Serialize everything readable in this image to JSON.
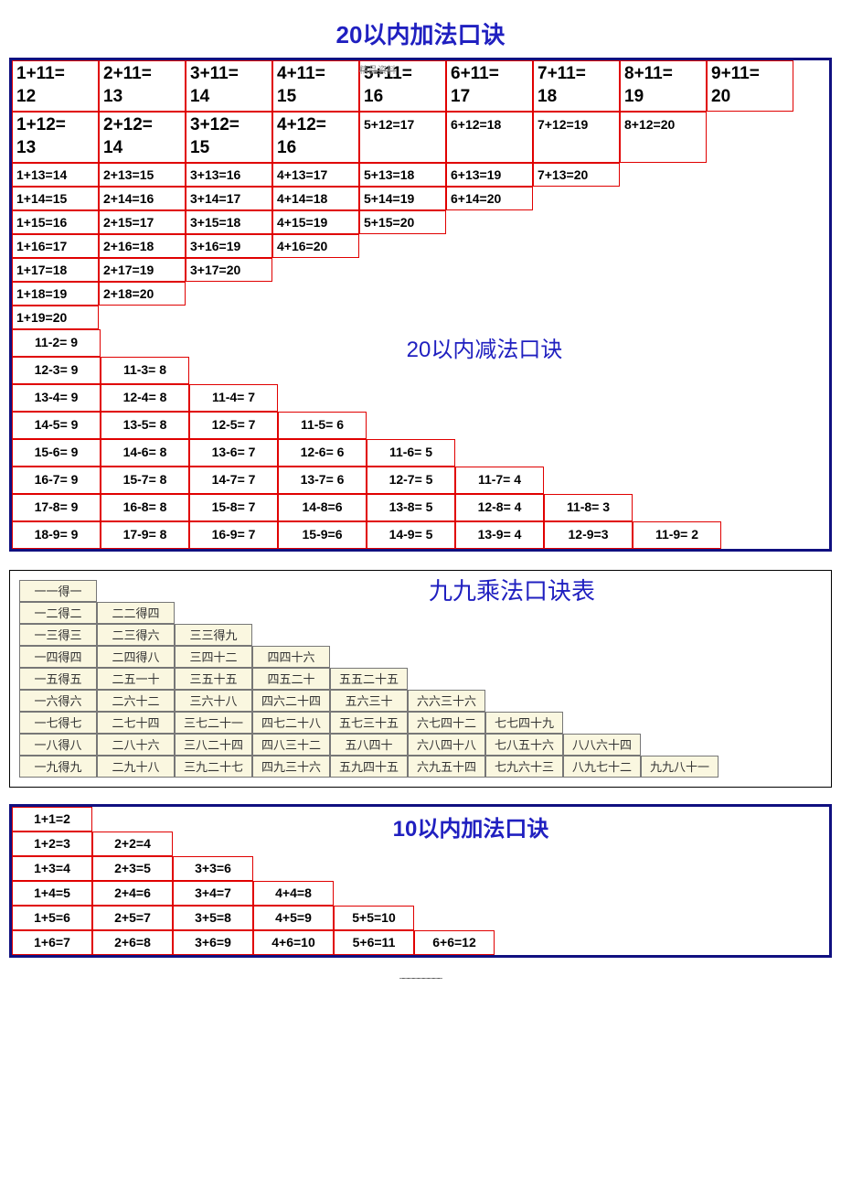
{
  "titles": {
    "add20": "20以内加法口诀",
    "sub20": "20以内减法口诀",
    "mult": "九九乘法口诀表",
    "add10": "10以内加法口诀",
    "watermark": "精品资料",
    "dots": "......................................"
  },
  "add20_rows": [
    {
      "style": "big",
      "cells": [
        "1+11= 12",
        "2+11= 13",
        "3+11= 14",
        "4+11= 15",
        "5+11= 16",
        "6+11= 17",
        "7+11= 18",
        "8+11= 19",
        "9+11= 20"
      ]
    },
    {
      "style": "mix",
      "bigcells": [
        "1+12= 13",
        "2+12= 14",
        "3+12= 15",
        "4+12= 16"
      ],
      "smcells": [
        "5+12=17",
        "6+12=18",
        "7+12=19",
        "8+12=20"
      ]
    },
    {
      "style": "sm",
      "cells": [
        "1+13=14",
        "2+13=15",
        "3+13=16",
        "4+13=17",
        "5+13=18",
        "6+13=19",
        "7+13=20"
      ]
    },
    {
      "style": "sm",
      "cells": [
        "1+14=15",
        "2+14=16",
        "3+14=17",
        "4+14=18",
        "5+14=19",
        "6+14=20"
      ]
    },
    {
      "style": "sm",
      "cells": [
        "1+15=16",
        "2+15=17",
        "3+15=18",
        "4+15=19",
        "5+15=20"
      ]
    },
    {
      "style": "sm",
      "cells": [
        "1+16=17",
        "2+16=18",
        "3+16=19",
        "4+16=20"
      ]
    },
    {
      "style": "sm",
      "cells": [
        "1+17=18",
        "2+17=19",
        "3+17=20"
      ]
    },
    {
      "style": "sm",
      "cells": [
        "1+18=19",
        "2+18=20"
      ]
    },
    {
      "style": "sm",
      "cells": [
        "1+19=20"
      ]
    }
  ],
  "sub20_rows": [
    [
      "11-2= 9"
    ],
    [
      "12-3= 9",
      "11-3= 8"
    ],
    [
      "13-4= 9",
      "12-4= 8",
      "11-4= 7"
    ],
    [
      "14-5= 9",
      "13-5= 8",
      "12-5= 7",
      "11-5= 6"
    ],
    [
      "15-6= 9",
      "14-6= 8",
      "13-6= 7",
      "12-6= 6",
      "11-6= 5"
    ],
    [
      "16-7= 9",
      "15-7= 8",
      "14-7= 7",
      "13-7= 6",
      "12-7= 5",
      "11-7= 4"
    ],
    [
      "17-8= 9",
      "16-8= 8",
      "15-8= 7",
      "14-8=6",
      "13-8= 5",
      "12-8= 4",
      "11-8= 3"
    ],
    [
      "18-9= 9",
      "17-9= 8",
      "16-9= 7",
      "15-9=6",
      "14-9= 5",
      "13-9= 4",
      "12-9=3",
      "11-9= 2"
    ]
  ],
  "mult_rows": [
    [
      "一一得一"
    ],
    [
      "一二得二",
      "二二得四"
    ],
    [
      "一三得三",
      "二三得六",
      "三三得九"
    ],
    [
      "一四得四",
      "二四得八",
      "三四十二",
      "四四十六"
    ],
    [
      "一五得五",
      "二五一十",
      "三五十五",
      "四五二十",
      "五五二十五"
    ],
    [
      "一六得六",
      "二六十二",
      "三六十八",
      "四六二十四",
      "五六三十",
      "六六三十六"
    ],
    [
      "一七得七",
      "二七十四",
      "三七二十一",
      "四七二十八",
      "五七三十五",
      "六七四十二",
      "七七四十九"
    ],
    [
      "一八得八",
      "二八十六",
      "三八二十四",
      "四八三十二",
      "五八四十",
      "六八四十八",
      "七八五十六",
      "八八六十四"
    ],
    [
      "一九得九",
      "二九十八",
      "三九二十七",
      "四九三十六",
      "五九四十五",
      "六九五十四",
      "七九六十三",
      "八九七十二",
      "九九八十一"
    ]
  ],
  "add10_rows": [
    [
      "1+1=2"
    ],
    [
      "1+2=3",
      "2+2=4"
    ],
    [
      "1+3=4",
      "2+3=5",
      "3+3=6"
    ],
    [
      "1+4=5",
      "2+4=6",
      "3+4=7",
      "4+4=8"
    ],
    [
      "1+5=6",
      "2+5=7",
      "3+5=8",
      "4+5=9",
      "5+5=10"
    ],
    [
      "1+6=7",
      "2+6=8",
      "3+6=9",
      "4+6=10",
      "5+6=11",
      "6+6=12"
    ]
  ],
  "colors": {
    "title": "#2020c0",
    "cell_border": "#e00000",
    "outer_border": "#101080",
    "mult_bg": "#faf7e0"
  }
}
